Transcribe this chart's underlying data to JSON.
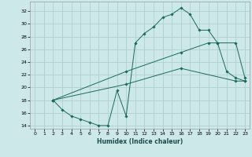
{
  "xlabel": "Humidex (Indice chaleur)",
  "bg_color": "#cce8e8",
  "grid_color": "#b0d0d0",
  "line_color": "#1a6b5a",
  "xlim": [
    -0.5,
    23.5
  ],
  "ylim": [
    13.5,
    33.5
  ],
  "xticks": [
    0,
    1,
    2,
    3,
    4,
    5,
    6,
    7,
    8,
    9,
    10,
    11,
    12,
    13,
    14,
    15,
    16,
    17,
    18,
    19,
    20,
    21,
    22,
    23
  ],
  "yticks": [
    14,
    16,
    18,
    20,
    22,
    24,
    26,
    28,
    30,
    32
  ],
  "line1_x": [
    2,
    3,
    4,
    5,
    6,
    7,
    8,
    9,
    10,
    11,
    12,
    13,
    14,
    15,
    16,
    17,
    18,
    19,
    20,
    21,
    22,
    23
  ],
  "line1_y": [
    18,
    16.5,
    15.5,
    15,
    14.5,
    14,
    14,
    19.5,
    15.5,
    27,
    28.5,
    29.5,
    31,
    31.5,
    32.5,
    31.5,
    29,
    29,
    27,
    22.5,
    21.5,
    21
  ],
  "line2_x": [
    2,
    10,
    16,
    19,
    20,
    22,
    23
  ],
  "line2_y": [
    18,
    22.5,
    25.5,
    27,
    27,
    27,
    21.5
  ],
  "line3_x": [
    2,
    10,
    16,
    22,
    23
  ],
  "line3_y": [
    18,
    20.5,
    23,
    21,
    21
  ]
}
